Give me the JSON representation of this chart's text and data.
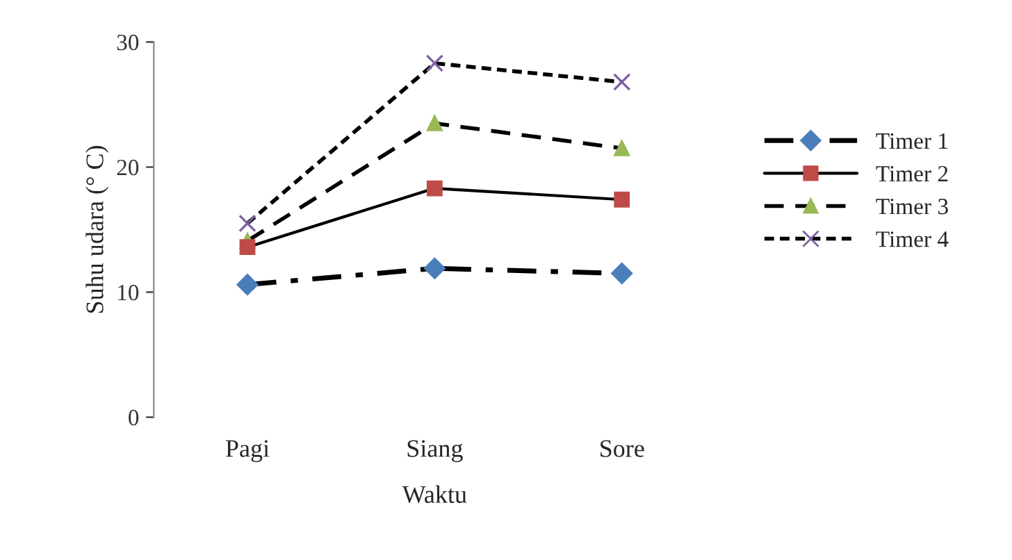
{
  "chart_data": {
    "type": "line",
    "xlabel": "Waktu",
    "ylabel": "Suhu udara (° C)",
    "categories": [
      "Pagi",
      "Siang",
      "Sore"
    ],
    "ylim": [
      0,
      30
    ],
    "yticks": [
      0,
      10,
      20,
      30
    ],
    "grid": false,
    "legend": "right",
    "series": [
      {
        "name": "Timer 1",
        "color": "#000000",
        "colors": [
          "#4a7ebb",
          "#4a7ebb",
          "#4a7ebb"
        ],
        "marker": "diamond",
        "line_style": "dashdot",
        "values": [
          10.6,
          11.9,
          11.5
        ]
      },
      {
        "name": "Timer 2",
        "color": "#000000",
        "colors": [
          "#be4b48",
          "#be4b48",
          "#be4b48"
        ],
        "marker": "square",
        "line_style": "solid",
        "values": [
          13.6,
          18.3,
          17.4
        ]
      },
      {
        "name": "Timer 3",
        "color": "#000000",
        "colors": [
          "#98b954",
          "#98b954",
          "#98b954"
        ],
        "marker": "triangle",
        "line_style": "dashed",
        "values": [
          14.1,
          23.5,
          21.5
        ]
      },
      {
        "name": "Timer 4",
        "color": "#000000",
        "colors": [
          "#7d60a0",
          "#7d60a0",
          "#7d60a0"
        ],
        "marker": "cross",
        "line_style": "dotted",
        "values": [
          15.5,
          28.3,
          26.8
        ]
      }
    ]
  }
}
